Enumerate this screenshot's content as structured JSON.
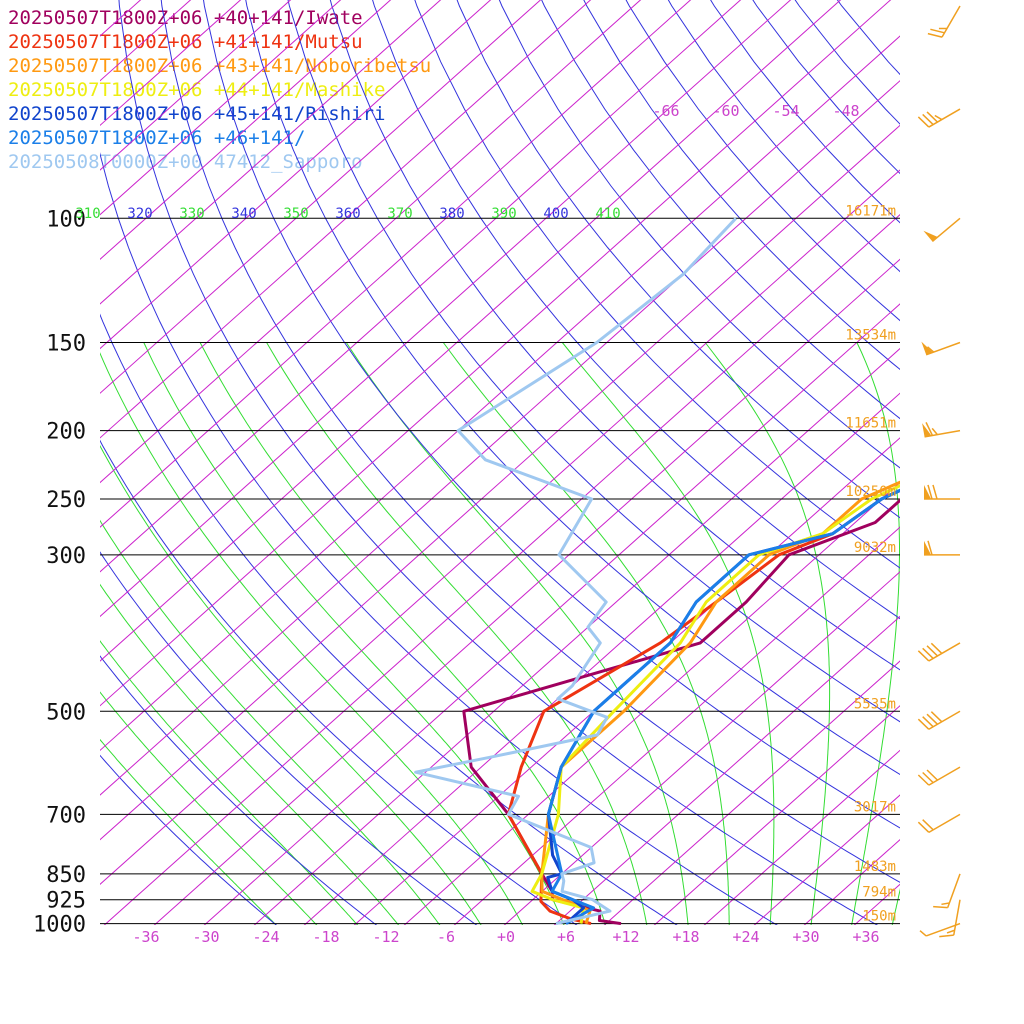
{
  "legend": [
    {
      "label": "20250507T1800Z+06 +40+141/Iwate",
      "color": "#a0005e"
    },
    {
      "label": "20250507T1800Z+06 +41+141/Mutsu",
      "color": "#ee3311"
    },
    {
      "label": "20250507T1800Z+06 +43+141/Noboribetsu",
      "color": "#ff9911"
    },
    {
      "label": "20250507T1800Z+06 +44+141/Mashike",
      "color": "#eeee11"
    },
    {
      "label": "20250507T1800Z+06 +45+141/Rishiri",
      "color": "#1144cc"
    },
    {
      "label": "20250507T1800Z+06 +46+141/",
      "color": "#1b7fe8"
    },
    {
      "label": "20250508T0000Z+00 47412_Sapporo",
      "color": "#9fc8f0"
    }
  ],
  "chart_data": {
    "type": "line",
    "diagram": "skew-T log-P",
    "pressure_levels": [
      "100",
      "150",
      "200",
      "250",
      "300",
      "500",
      "700",
      "850",
      "925",
      "1000"
    ],
    "heights": [
      "16171m",
      "13534m",
      "11651m",
      "10250m",
      "9032m",
      "5535m",
      "3017m",
      "1483m",
      "794m",
      "150m"
    ],
    "temp_ticks": [
      "-36",
      "-30",
      "-24",
      "-18",
      "-12",
      "-6",
      "+0",
      "+6",
      "+12",
      "+18",
      "+24",
      "+30",
      "+36"
    ],
    "upper_temp_labels": [
      "-66",
      "-60",
      "-54",
      "-48"
    ],
    "theta_labels": [
      "310",
      "320",
      "330",
      "340",
      "350",
      "360",
      "370",
      "380",
      "390",
      "400",
      "410"
    ],
    "colors": {
      "isobar": "#000000",
      "isotherm": "#cc22cc",
      "dry_adiabat": "#3333dd",
      "moist_adiabat": "#33dd33",
      "height": "#f0a020",
      "barb": "#f0a020"
    },
    "series": [
      {
        "name": "Iwate",
        "color": "#a0005e",
        "points": [
          [
            1000,
            11.5
          ],
          [
            990,
            9
          ],
          [
            960,
            8
          ],
          [
            925,
            2
          ],
          [
            900,
            1
          ],
          [
            850,
            -2
          ],
          [
            700,
            -12
          ],
          [
            600,
            -21
          ],
          [
            500,
            -28
          ],
          [
            400,
            -12
          ],
          [
            350,
            -12
          ],
          [
            300,
            -13
          ],
          [
            270,
            -8
          ],
          [
            250,
            -8
          ],
          [
            200,
            -1
          ],
          [
            150,
            -4
          ],
          [
            100,
            -2
          ],
          [
            70,
            -4
          ],
          [
            50,
            -5
          ],
          [
            38,
            -3
          ]
        ]
      },
      {
        "name": "Mutsu",
        "color": "#ee3311",
        "points": [
          [
            1000,
            8.5
          ],
          [
            985,
            6
          ],
          [
            960,
            3
          ],
          [
            930,
            1
          ],
          [
            850,
            -2
          ],
          [
            700,
            -12
          ],
          [
            600,
            -16
          ],
          [
            500,
            -20
          ],
          [
            400,
            -16
          ],
          [
            350,
            -15
          ],
          [
            300,
            -14
          ],
          [
            280,
            -11
          ],
          [
            250,
            -10
          ],
          [
            200,
            -3
          ],
          [
            150,
            -4
          ],
          [
            100,
            0
          ],
          [
            70,
            0
          ],
          [
            50,
            -1
          ],
          [
            38,
            -1
          ]
        ]
      },
      {
        "name": "Noboribetsu",
        "color": "#ff9911",
        "points": [
          [
            1000,
            8
          ],
          [
            960,
            7
          ],
          [
            940,
            5
          ],
          [
            925,
            3
          ],
          [
            900,
            0
          ],
          [
            850,
            -2
          ],
          [
            700,
            -8
          ],
          [
            600,
            -12
          ],
          [
            500,
            -12
          ],
          [
            400,
            -13
          ],
          [
            350,
            -15
          ],
          [
            300,
            -15
          ],
          [
            280,
            -12
          ],
          [
            250,
            -12
          ],
          [
            200,
            -4
          ],
          [
            150,
            -4
          ],
          [
            100,
            2
          ],
          [
            70,
            0
          ],
          [
            50,
            -1
          ],
          [
            38,
            0
          ]
        ]
      },
      {
        "name": "Mashike",
        "color": "#eeee11",
        "points": [
          [
            1000,
            7.5
          ],
          [
            950,
            6
          ],
          [
            925,
            2
          ],
          [
            900,
            -1
          ],
          [
            850,
            -2
          ],
          [
            700,
            -7
          ],
          [
            600,
            -12
          ],
          [
            500,
            -13
          ],
          [
            400,
            -14
          ],
          [
            350,
            -16
          ],
          [
            300,
            -16
          ],
          [
            280,
            -12
          ],
          [
            250,
            -11
          ],
          [
            200,
            -4
          ],
          [
            150,
            -3
          ],
          [
            100,
            2
          ],
          [
            70,
            2
          ],
          [
            50,
            1
          ],
          [
            38,
            2
          ]
        ]
      },
      {
        "name": "Rishiri",
        "color": "#1144cc",
        "points": [
          [
            1000,
            6
          ],
          [
            950,
            6
          ],
          [
            925,
            4
          ],
          [
            900,
            1
          ],
          [
            860,
            -1
          ],
          [
            850,
            0
          ],
          [
            800,
            -3
          ],
          [
            700,
            -8
          ],
          [
            600,
            -12
          ],
          [
            500,
            -15
          ],
          [
            400,
            -15
          ],
          [
            350,
            -17
          ],
          [
            300,
            -17
          ],
          [
            280,
            -11
          ],
          [
            250,
            -10
          ],
          [
            200,
            -3
          ],
          [
            150,
            -2
          ],
          [
            100,
            2
          ],
          [
            70,
            3
          ],
          [
            50,
            2
          ],
          [
            38,
            2
          ]
        ]
      },
      {
        "name": "",
        "color": "#1b7fe8",
        "points": [
          [
            1000,
            6
          ],
          [
            950,
            7
          ],
          [
            925,
            4
          ],
          [
            900,
            1
          ],
          [
            850,
            0
          ],
          [
            700,
            -8
          ],
          [
            600,
            -12
          ],
          [
            500,
            -15
          ],
          [
            400,
            -15
          ],
          [
            350,
            -17
          ],
          [
            300,
            -17
          ],
          [
            280,
            -11
          ],
          [
            250,
            -10
          ],
          [
            200,
            -3
          ],
          [
            150,
            -2
          ],
          [
            100,
            2
          ],
          [
            70,
            3
          ],
          [
            50,
            2
          ],
          [
            38,
            2
          ]
        ]
      },
      {
        "name": "Sapporo",
        "color": "#9fc8f0",
        "points": [
          [
            1000,
            5
          ],
          [
            990,
            6
          ],
          [
            960,
            9
          ],
          [
            925,
            6
          ],
          [
            900,
            2
          ],
          [
            870,
            1
          ],
          [
            850,
            0
          ],
          [
            820,
            2
          ],
          [
            780,
            0
          ],
          [
            700,
            -12
          ],
          [
            660,
            -13
          ],
          [
            610,
            -26
          ],
          [
            580,
            -20
          ],
          [
            540,
            -12
          ],
          [
            510,
            -13
          ],
          [
            480,
            -20
          ],
          [
            460,
            -20
          ],
          [
            400,
            -22
          ],
          [
            380,
            -25
          ],
          [
            350,
            -26
          ],
          [
            300,
            -36
          ],
          [
            250,
            -39
          ],
          [
            220,
            -54
          ],
          [
            200,
            -60
          ],
          [
            150,
            -56
          ],
          [
            120,
            -55
          ],
          [
            100,
            -56
          ]
        ]
      }
    ],
    "wind_barbs_kt": [
      {
        "p": 1000,
        "speed": 5,
        "dir": 250
      },
      {
        "p": 925,
        "speed": 15,
        "dir": 190
      },
      {
        "p": 850,
        "speed": 15,
        "dir": 200
      },
      {
        "p": 700,
        "speed": 20,
        "dir": 240
      },
      {
        "p": 600,
        "speed": 30,
        "dir": 240
      },
      {
        "p": 500,
        "speed": 40,
        "dir": 240
      },
      {
        "p": 400,
        "speed": 40,
        "dir": 240
      },
      {
        "p": 300,
        "speed": 60,
        "dir": 270
      },
      {
        "p": 250,
        "speed": 70,
        "dir": 270
      },
      {
        "p": 200,
        "speed": 65,
        "dir": 260
      },
      {
        "p": 150,
        "speed": 55,
        "dir": 250
      },
      {
        "p": 100,
        "speed": 50,
        "dir": 230
      },
      {
        "p": 70,
        "speed": 35,
        "dir": 240
      },
      {
        "p": 50,
        "speed": 25,
        "dir": 210
      }
    ]
  }
}
